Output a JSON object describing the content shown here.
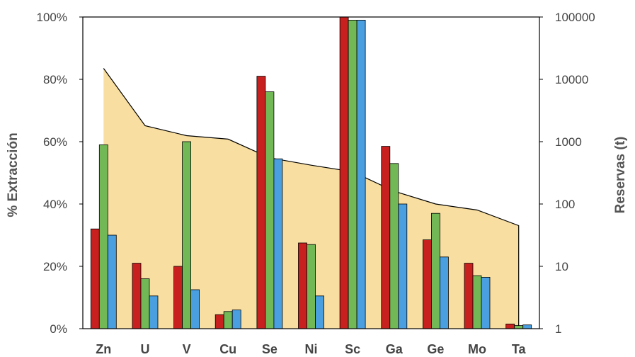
{
  "chart_data": {
    "type": "bar",
    "categories": [
      "Zn",
      "U",
      "V",
      "Cu",
      "Se",
      "Ni",
      "Sc",
      "Ga",
      "Ge",
      "Mo",
      "Ta"
    ],
    "series": [
      {
        "color": "#c8201e",
        "values": [
          32,
          21,
          20,
          4.5,
          81,
          27.5,
          100,
          58.5,
          28.5,
          21,
          1.5
        ]
      },
      {
        "color": "#72b856",
        "values": [
          59,
          16,
          60,
          5.5,
          76,
          27,
          99,
          53,
          37,
          17,
          1
        ]
      },
      {
        "color": "#4a9fe0",
        "values": [
          30,
          10.5,
          12.5,
          6,
          54.5,
          10.5,
          99,
          40,
          23,
          16.5,
          1.2
        ]
      }
    ],
    "area": {
      "name": "Reservas (t)",
      "fill": "#f8dea0",
      "values": [
        15000,
        1800,
        1250,
        1100,
        550,
        420,
        330,
        160,
        100,
        80,
        45
      ]
    },
    "ylabel": "% Extracción",
    "y2label": "Reservas (t)",
    "ylim": [
      0,
      100
    ],
    "yticks": [
      "0%",
      "20%",
      "40%",
      "60%",
      "80%",
      "100%"
    ],
    "y2scale": "log",
    "y2lim": [
      1,
      100000
    ],
    "y2ticks": [
      "1",
      "10",
      "100",
      "1000",
      "10000",
      "100000"
    ],
    "grid": false,
    "title": "",
    "xlabel": ""
  }
}
